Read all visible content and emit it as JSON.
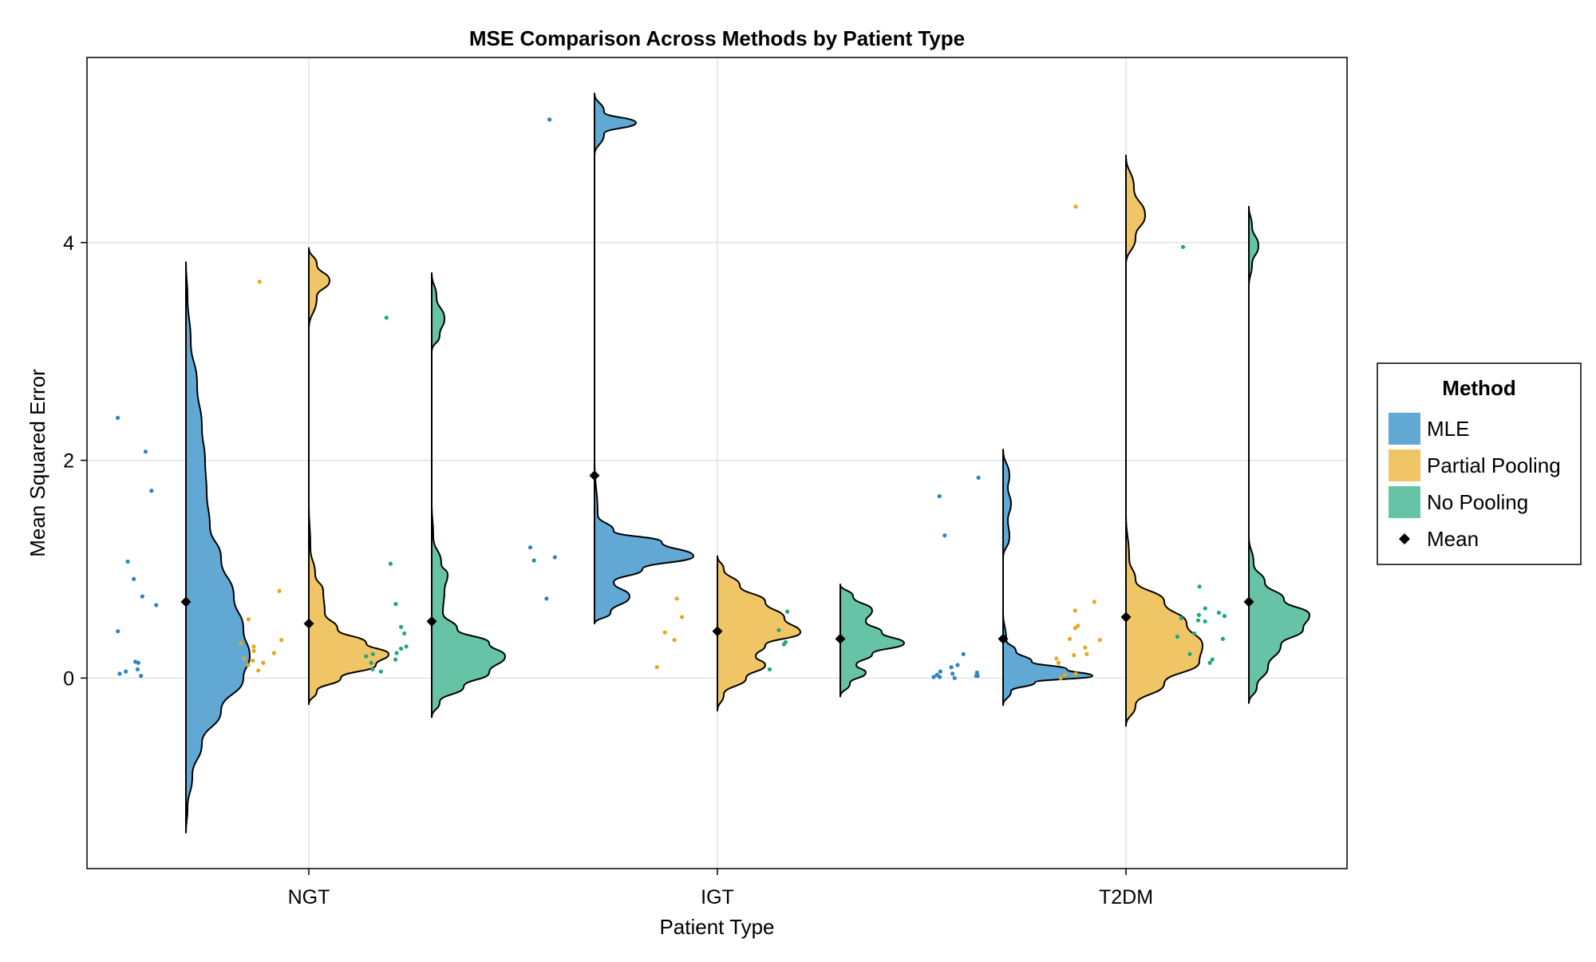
{
  "chart_data": {
    "type": "violin",
    "title": "MSE Comparison Across Methods by Patient Type",
    "xlabel": "Patient Type",
    "ylabel": "Mean Squared Error",
    "categories": [
      "NGT",
      "IGT",
      "T2DM"
    ],
    "y_ticks": [
      0,
      2,
      4
    ],
    "ylim": [
      -1.75,
      5.7
    ],
    "grid": true,
    "legend": {
      "title": "Method",
      "placement": "right",
      "entries": [
        "MLE",
        "Partial Pooling",
        "No Pooling",
        "Mean"
      ]
    },
    "series": [
      {
        "name": "MLE",
        "color": "#62a8d4",
        "point_color": "#2a86bf",
        "groups": [
          {
            "category": "NGT",
            "mean": 0.7,
            "range": [
              -1.42,
              3.82
            ],
            "density": [
              [
                -1.42,
                0
              ],
              [
                -1.2,
                0.01
              ],
              [
                -0.9,
                0.04
              ],
              [
                -0.6,
                0.1
              ],
              [
                -0.3,
                0.22
              ],
              [
                0.0,
                0.36
              ],
              [
                0.2,
                0.4
              ],
              [
                0.45,
                0.36
              ],
              [
                0.75,
                0.3
              ],
              [
                1.1,
                0.22
              ],
              [
                1.4,
                0.15
              ],
              [
                1.7,
                0.13
              ],
              [
                2.0,
                0.12
              ],
              [
                2.3,
                0.1
              ],
              [
                2.7,
                0.07
              ],
              [
                3.1,
                0.03
              ],
              [
                3.5,
                0.01
              ],
              [
                3.82,
                0
              ]
            ],
            "points": [
              0.08,
              0.02,
              0.04,
              0.06,
              0.15,
              0.14,
              0.43,
              0.67,
              0.75,
              0.91,
              1.07,
              1.72,
              2.08,
              2.39
            ]
          },
          {
            "category": "IGT",
            "mean": 1.86,
            "range": [
              0.5,
              5.37
            ],
            "density": [
              [
                0.5,
                0
              ],
              [
                0.6,
                0.1
              ],
              [
                0.75,
                0.22
              ],
              [
                0.88,
                0.12
              ],
              [
                1.0,
                0.3
              ],
              [
                1.12,
                0.62
              ],
              [
                1.25,
                0.42
              ],
              [
                1.35,
                0.12
              ],
              [
                1.5,
                0.02
              ],
              [
                2.0,
                0
              ],
              [
                3.0,
                0
              ],
              [
                4.8,
                0
              ],
              [
                5.0,
                0.06
              ],
              [
                5.1,
                0.26
              ],
              [
                5.2,
                0.06
              ],
              [
                5.37,
                0
              ]
            ],
            "points": [
              0.73,
              1.08,
              1.11,
              1.2,
              5.13
            ]
          },
          {
            "category": "T2DM",
            "mean": 0.36,
            "range": [
              -0.25,
              2.1
            ],
            "density": [
              [
                -0.25,
                0
              ],
              [
                -0.12,
                0.05
              ],
              [
                -0.04,
                0.2
              ],
              [
                0.02,
                0.56
              ],
              [
                0.08,
                0.4
              ],
              [
                0.15,
                0.18
              ],
              [
                0.25,
                0.08
              ],
              [
                0.35,
                0.02
              ],
              [
                0.6,
                0
              ],
              [
                1.1,
                0
              ],
              [
                1.3,
                0.04
              ],
              [
                1.45,
                0.03
              ],
              [
                1.6,
                0.05
              ],
              [
                1.75,
                0.03
              ],
              [
                1.85,
                0.04
              ],
              [
                2.1,
                0
              ]
            ],
            "points": [
              0.0,
              0.01,
              0.01,
              0.02,
              0.02,
              0.03,
              0.04,
              0.05,
              0.06,
              0.1,
              0.12,
              0.22,
              1.31,
              1.67,
              1.84
            ]
          }
        ]
      },
      {
        "name": "Partial Pooling",
        "color": "#f0c566",
        "point_color": "#e8a81c",
        "groups": [
          {
            "category": "NGT",
            "mean": 0.5,
            "range": [
              -0.24,
              3.95
            ],
            "density": [
              [
                -0.24,
                0
              ],
              [
                -0.12,
                0.05
              ],
              [
                0.0,
                0.2
              ],
              [
                0.12,
                0.42
              ],
              [
                0.22,
                0.5
              ],
              [
                0.32,
                0.36
              ],
              [
                0.45,
                0.18
              ],
              [
                0.6,
                0.1
              ],
              [
                0.8,
                0.09
              ],
              [
                0.95,
                0.04
              ],
              [
                1.2,
                0.01
              ],
              [
                1.6,
                0
              ],
              [
                3.2,
                0
              ],
              [
                3.5,
                0.05
              ],
              [
                3.65,
                0.13
              ],
              [
                3.8,
                0.05
              ],
              [
                3.95,
                0
              ]
            ],
            "points": [
              0.07,
              0.12,
              0.14,
              0.16,
              0.18,
              0.23,
              0.25,
              0.29,
              0.32,
              0.35,
              0.54,
              0.8,
              3.64
            ]
          },
          {
            "category": "IGT",
            "mean": 0.43,
            "range": [
              -0.3,
              1.12
            ],
            "density": [
              [
                -0.3,
                0
              ],
              [
                -0.15,
                0.04
              ],
              [
                0.0,
                0.18
              ],
              [
                0.12,
                0.3
              ],
              [
                0.2,
                0.24
              ],
              [
                0.3,
                0.3
              ],
              [
                0.42,
                0.52
              ],
              [
                0.55,
                0.42
              ],
              [
                0.7,
                0.3
              ],
              [
                0.85,
                0.14
              ],
              [
                1.0,
                0.04
              ],
              [
                1.12,
                0
              ]
            ],
            "points": [
              0.1,
              0.35,
              0.42,
              0.56,
              0.73
            ]
          },
          {
            "category": "T2DM",
            "mean": 0.56,
            "range": [
              -0.44,
              4.8
            ],
            "density": [
              [
                -0.44,
                0
              ],
              [
                -0.25,
                0.06
              ],
              [
                -0.05,
                0.24
              ],
              [
                0.15,
                0.46
              ],
              [
                0.3,
                0.48
              ],
              [
                0.5,
                0.38
              ],
              [
                0.7,
                0.24
              ],
              [
                0.9,
                0.06
              ],
              [
                1.1,
                0.02
              ],
              [
                1.5,
                0
              ],
              [
                3.8,
                0
              ],
              [
                4.05,
                0.06
              ],
              [
                4.25,
                0.12
              ],
              [
                4.5,
                0.05
              ],
              [
                4.8,
                0
              ]
            ],
            "points": [
              0.0,
              0.03,
              0.04,
              0.14,
              0.18,
              0.21,
              0.22,
              0.28,
              0.35,
              0.36,
              0.46,
              0.48,
              0.62,
              0.7,
              4.33
            ]
          }
        ]
      },
      {
        "name": "No Pooling",
        "color": "#66c3a6",
        "point_color": "#1fa882",
        "groups": [
          {
            "category": "NGT",
            "mean": 0.52,
            "range": [
              -0.36,
              3.72
            ],
            "density": [
              [
                -0.36,
                0
              ],
              [
                -0.22,
                0.05
              ],
              [
                -0.08,
                0.2
              ],
              [
                0.05,
                0.36
              ],
              [
                0.2,
                0.46
              ],
              [
                0.32,
                0.36
              ],
              [
                0.45,
                0.16
              ],
              [
                0.6,
                0.07
              ],
              [
                0.8,
                0.08
              ],
              [
                0.95,
                0.1
              ],
              [
                1.05,
                0.06
              ],
              [
                1.3,
                0.01
              ],
              [
                1.6,
                0
              ],
              [
                3.0,
                0
              ],
              [
                3.15,
                0.05
              ],
              [
                3.3,
                0.08
              ],
              [
                3.5,
                0.03
              ],
              [
                3.72,
                0
              ]
            ],
            "points": [
              0.06,
              0.08,
              0.14,
              0.17,
              0.2,
              0.22,
              0.23,
              0.27,
              0.29,
              0.41,
              0.47,
              0.68,
              1.05,
              3.31
            ]
          },
          {
            "category": "IGT",
            "mean": 0.36,
            "range": [
              -0.17,
              0.86
            ],
            "density": [
              [
                -0.17,
                0
              ],
              [
                -0.05,
                0.06
              ],
              [
                0.05,
                0.16
              ],
              [
                0.12,
                0.1
              ],
              [
                0.22,
                0.2
              ],
              [
                0.32,
                0.4
              ],
              [
                0.42,
                0.26
              ],
              [
                0.52,
                0.16
              ],
              [
                0.62,
                0.2
              ],
              [
                0.75,
                0.08
              ],
              [
                0.86,
                0
              ]
            ],
            "points": [
              0.08,
              0.31,
              0.33,
              0.44,
              0.61
            ]
          },
          {
            "category": "T2DM",
            "mean": 0.7,
            "range": [
              -0.23,
              4.33
            ],
            "density": [
              [
                -0.23,
                0
              ],
              [
                -0.08,
                0.05
              ],
              [
                0.1,
                0.12
              ],
              [
                0.3,
                0.2
              ],
              [
                0.45,
                0.34
              ],
              [
                0.58,
                0.38
              ],
              [
                0.72,
                0.22
              ],
              [
                0.88,
                0.1
              ],
              [
                1.05,
                0.03
              ],
              [
                1.3,
                0
              ],
              [
                3.6,
                0
              ],
              [
                3.8,
                0.02
              ],
              [
                3.97,
                0.06
              ],
              [
                4.15,
                0.02
              ],
              [
                4.33,
                0
              ]
            ],
            "points": [
              0.14,
              0.17,
              0.22,
              0.36,
              0.38,
              0.41,
              0.52,
              0.53,
              0.55,
              0.57,
              0.58,
              0.6,
              0.64,
              0.84,
              3.96
            ]
          }
        ]
      }
    ]
  }
}
